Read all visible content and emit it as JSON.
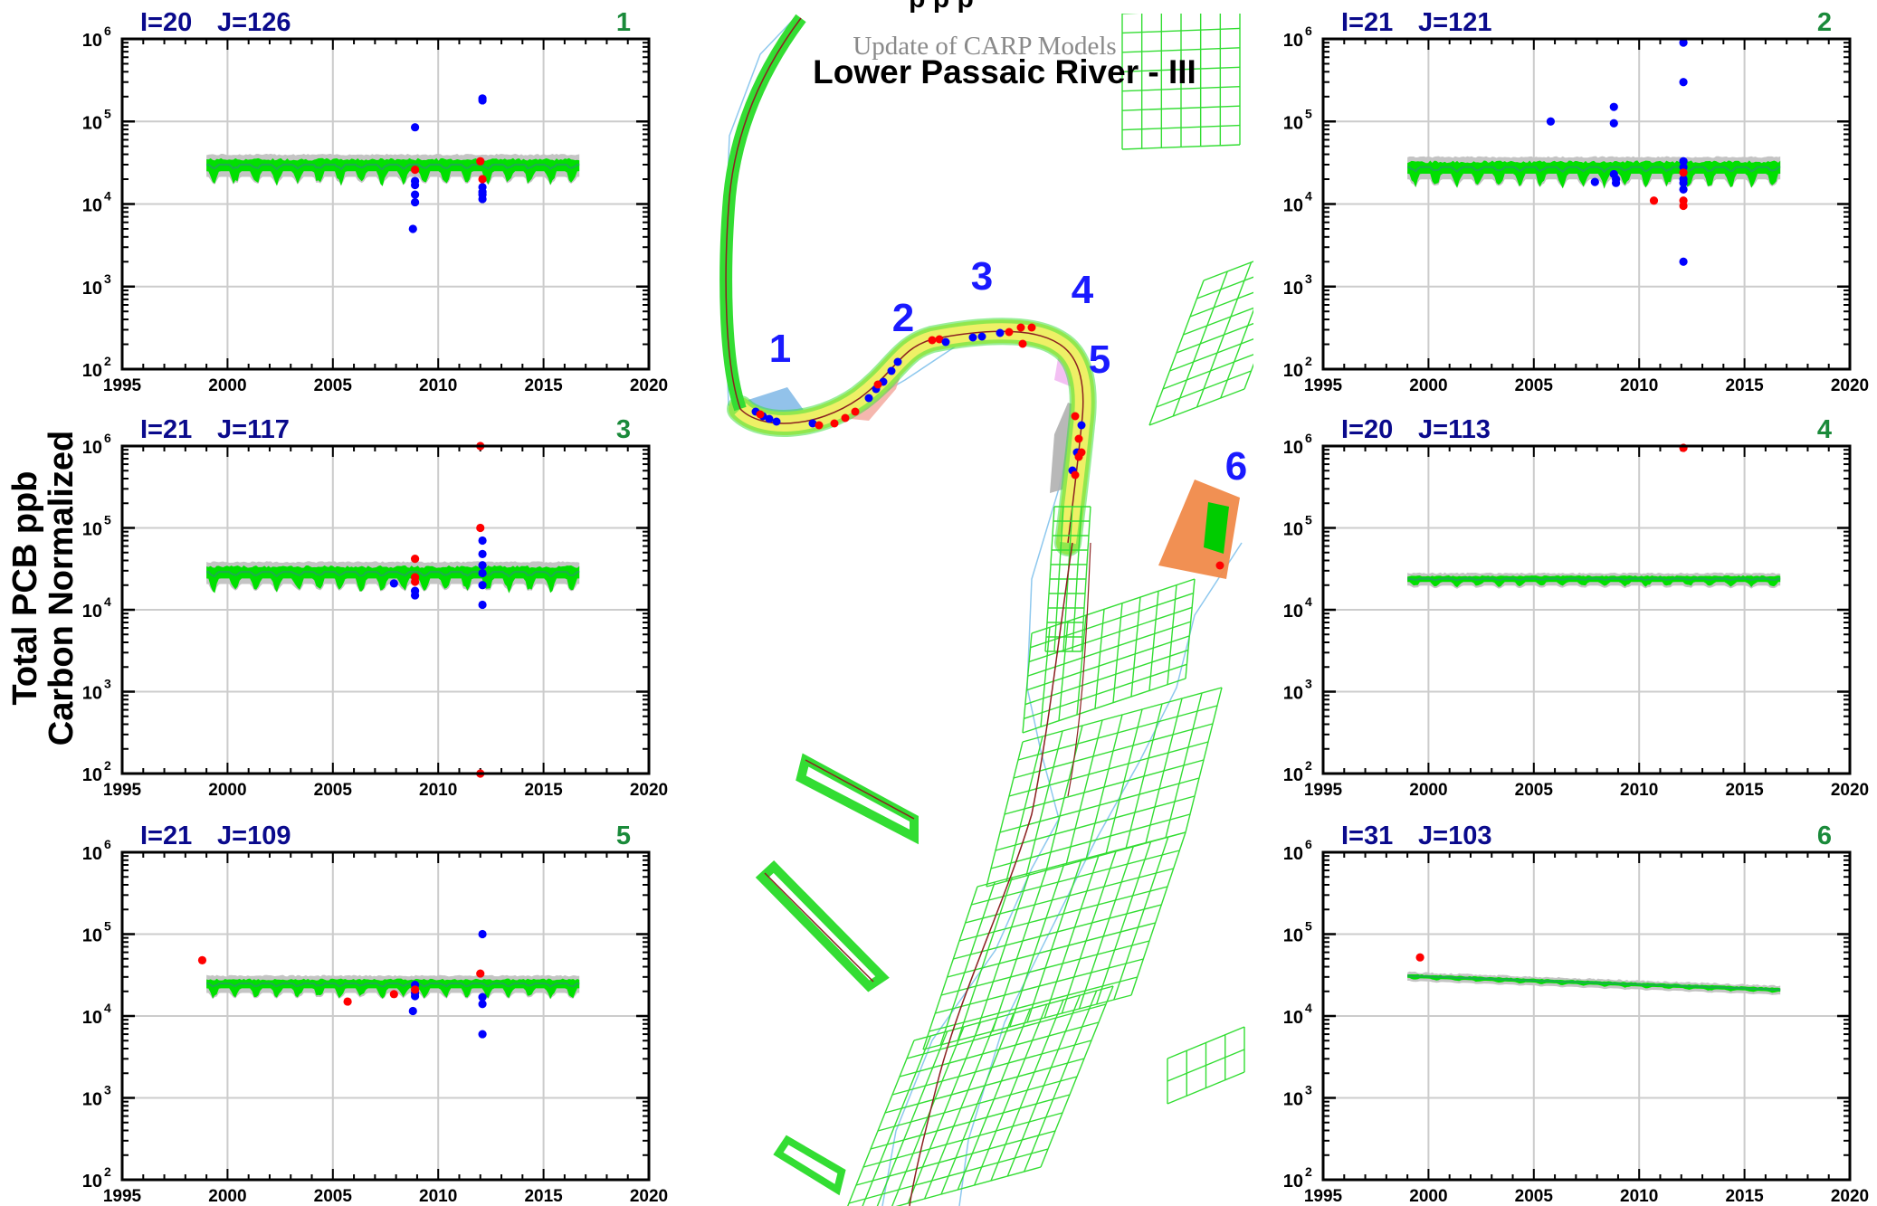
{
  "figure": {
    "top_title_fragment": "p             p               p",
    "subtitle": "Update of CARP Models",
    "title": "Lower Passaic River - III",
    "ylabel_line1": "Total PCB ppb",
    "ylabel_line2": "Carbon Normalized"
  },
  "colors": {
    "axis": "#000000",
    "grid": "#cccccc",
    "title_navy": "#0a0a8c",
    "panel_number_green": "#1a8a3a",
    "model_band_green": "#00e000",
    "model_band_gray": "#c4c4c4",
    "model_line": "#1ab04a",
    "obs_blue": "#0000ff",
    "obs_red": "#ff0000",
    "map_grid": "#33dd33",
    "map_channel": "#8b2020",
    "map_outline": "#8ec8ee",
    "map_label": "#1a1aff"
  },
  "map": {
    "labels": [
      "1",
      "2",
      "3",
      "4",
      "5",
      "6"
    ]
  },
  "chart_data": [
    {
      "panel_number": "1",
      "loc_i": "I=20",
      "loc_j": "J=126",
      "type": "scatter",
      "xlim": [
        1995,
        2020
      ],
      "xticks": [
        "1995",
        "2000",
        "2005",
        "2010",
        "2015",
        "2020"
      ],
      "yscale": "log",
      "ylim": [
        100,
        1000000
      ],
      "yticks_exp": [
        "2",
        "3",
        "4",
        "5",
        "6"
      ],
      "grid": true,
      "model": {
        "x_start": 1999,
        "x_end": 2016.7,
        "level": 30000,
        "variability": "high"
      },
      "series": [
        {
          "color": "blue",
          "points": [
            [
              2008.9,
              85000
            ],
            [
              2008.9,
              19000
            ],
            [
              2008.9,
              17000
            ],
            [
              2008.9,
              13000
            ],
            [
              2008.9,
              10500
            ],
            [
              2008.8,
              5000
            ],
            [
              2012.1,
              190000
            ],
            [
              2012.1,
              180000
            ],
            [
              2012.1,
              16000
            ],
            [
              2012.1,
              14000
            ],
            [
              2012.1,
              13000
            ],
            [
              2012.1,
              11500
            ]
          ]
        },
        {
          "color": "red",
          "points": [
            [
              2008.9,
              26000
            ],
            [
              2012.0,
              33000
            ],
            [
              2012.1,
              20000
            ]
          ]
        }
      ]
    },
    {
      "panel_number": "2",
      "loc_i": "I=21",
      "loc_j": "J=121",
      "type": "scatter",
      "xlim": [
        1995,
        2020
      ],
      "xticks": [
        "1995",
        "2000",
        "2005",
        "2010",
        "2015",
        "2020"
      ],
      "yscale": "log",
      "ylim": [
        100,
        1000000
      ],
      "yticks_exp": [
        "2",
        "3",
        "4",
        "5",
        "6"
      ],
      "grid": true,
      "model": {
        "x_start": 1999,
        "x_end": 2016.7,
        "level": 28000,
        "variability": "high"
      },
      "series": [
        {
          "color": "blue",
          "points": [
            [
              2005.8,
              100000
            ],
            [
              2008.8,
              150000
            ],
            [
              2008.8,
              95000
            ],
            [
              2008.8,
              23000
            ],
            [
              2008.9,
              20000
            ],
            [
              2008.9,
              18000
            ],
            [
              2007.9,
              18500
            ],
            [
              2012.1,
              900000
            ],
            [
              2012.1,
              300000
            ],
            [
              2012.1,
              33000
            ],
            [
              2012.1,
              28000
            ],
            [
              2012.1,
              20000
            ],
            [
              2012.1,
              18000
            ],
            [
              2012.1,
              15000
            ],
            [
              2012.1,
              2000
            ]
          ]
        },
        {
          "color": "red",
          "points": [
            [
              2010.7,
              11000
            ],
            [
              2012.1,
              24000
            ],
            [
              2012.1,
              11000
            ],
            [
              2012.1,
              9500
            ]
          ]
        }
      ]
    },
    {
      "panel_number": "3",
      "loc_i": "I=21",
      "loc_j": "J=117",
      "type": "scatter",
      "xlim": [
        1995,
        2020
      ],
      "xticks": [
        "1995",
        "2000",
        "2005",
        "2010",
        "2015",
        "2020"
      ],
      "yscale": "log",
      "ylim": [
        100,
        1000000
      ],
      "yticks_exp": [
        "2",
        "3",
        "4",
        "5",
        "6"
      ],
      "grid": true,
      "model": {
        "x_start": 1999,
        "x_end": 2016.7,
        "level": 29000,
        "variability": "high"
      },
      "series": [
        {
          "color": "blue",
          "points": [
            [
              2007.9,
              21000
            ],
            [
              2008.9,
              17000
            ],
            [
              2008.9,
              15000
            ],
            [
              2012.1,
              70000
            ],
            [
              2012.1,
              48000
            ],
            [
              2012.1,
              35000
            ],
            [
              2012.1,
              28000
            ],
            [
              2012.1,
              20000
            ],
            [
              2012.1,
              11500
            ]
          ]
        },
        {
          "color": "red",
          "points": [
            [
              2008.9,
              42000
            ],
            [
              2008.9,
              25000
            ],
            [
              2008.9,
              22000
            ],
            [
              2012.0,
              100000
            ],
            [
              2012.0,
              1000000
            ],
            [
              2012.0,
              100
            ]
          ]
        }
      ]
    },
    {
      "panel_number": "4",
      "loc_i": "I=20",
      "loc_j": "J=113",
      "type": "scatter",
      "xlim": [
        1995,
        2020
      ],
      "xticks": [
        "1995",
        "2000",
        "2005",
        "2010",
        "2015",
        "2020"
      ],
      "yscale": "log",
      "ylim": [
        100,
        1000000
      ],
      "yticks_exp": [
        "2",
        "3",
        "4",
        "5",
        "6"
      ],
      "grid": true,
      "model": {
        "x_start": 1999,
        "x_end": 2016.7,
        "level": 24000,
        "variability": "low"
      },
      "series": [
        {
          "color": "blue",
          "points": []
        },
        {
          "color": "red",
          "points": [
            [
              2012.1,
              950000
            ]
          ]
        }
      ]
    },
    {
      "panel_number": "5",
      "loc_i": "I=21",
      "loc_j": "J=109",
      "type": "scatter",
      "xlim": [
        1995,
        2020
      ],
      "xticks": [
        "1995",
        "2000",
        "2005",
        "2010",
        "2015",
        "2020"
      ],
      "yscale": "log",
      "ylim": [
        100,
        1000000
      ],
      "yticks_exp": [
        "2",
        "3",
        "4",
        "5",
        "6"
      ],
      "grid": true,
      "model": {
        "x_start": 1999,
        "x_end": 2016.7,
        "level": 25000,
        "variability": "medium"
      },
      "series": [
        {
          "color": "blue",
          "points": [
            [
              2008.9,
              24000
            ],
            [
              2008.9,
              19000
            ],
            [
              2008.9,
              17500
            ],
            [
              2008.8,
              11500
            ],
            [
              2012.1,
              100000
            ],
            [
              2012.1,
              17000
            ],
            [
              2012.1,
              14000
            ],
            [
              2012.1,
              6000
            ]
          ]
        },
        {
          "color": "red",
          "points": [
            [
              1998.8,
              48000
            ],
            [
              2005.7,
              15000
            ],
            [
              2007.9,
              18500
            ],
            [
              2008.9,
              21000
            ],
            [
              2012.0,
              33000
            ]
          ]
        }
      ]
    },
    {
      "panel_number": "6",
      "loc_i": "I=31",
      "loc_j": "J=103",
      "type": "line",
      "xlim": [
        1995,
        2020
      ],
      "xticks": [
        "1995",
        "2000",
        "2005",
        "2010",
        "2015",
        "2020"
      ],
      "yscale": "log",
      "ylim": [
        100,
        1000000
      ],
      "yticks_exp": [
        "2",
        "3",
        "4",
        "5",
        "6"
      ],
      "grid": true,
      "model": {
        "x_start": 1999,
        "x_end": 2016.7,
        "level": 31000,
        "level_end": 21000,
        "variability": "decay"
      },
      "series": [
        {
          "color": "blue",
          "points": []
        },
        {
          "color": "red",
          "points": [
            [
              1999.6,
              52000
            ]
          ]
        }
      ]
    }
  ]
}
